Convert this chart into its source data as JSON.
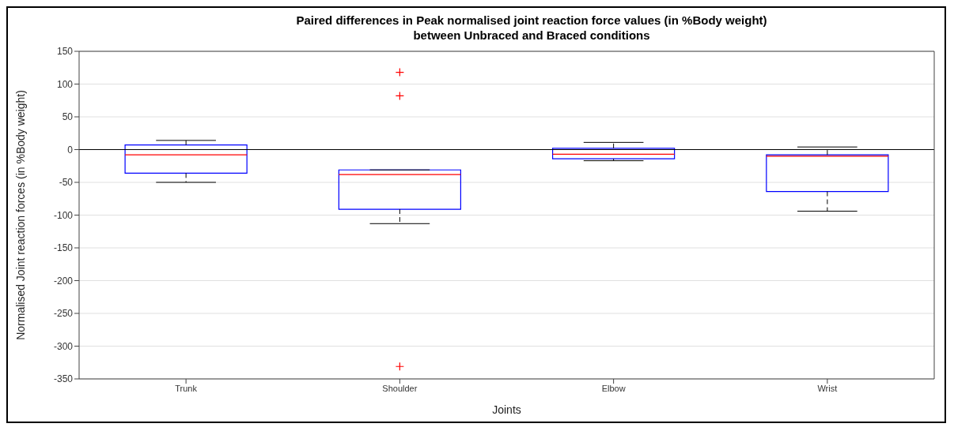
{
  "chart_data": {
    "type": "box",
    "title": "Paired differences in Peak normalised joint reaction force values (in %Body weight)\nbetween Unbraced and Braced conditions",
    "xlabel": "Joints",
    "ylabel": "Normalised Joint reaction forces (in %Body weight)",
    "categories": [
      "Trunk",
      "Shoulder",
      "Elbow",
      "Wrist"
    ],
    "color": "#0000ff",
    "boxes": [
      {
        "low": -50,
        "q1": -36,
        "median": -8,
        "q3": 7,
        "high": 14
      },
      {
        "low": -113,
        "q1": -91,
        "median": -38,
        "q3": -31,
        "high": -31,
        "outliers": [
          118,
          82,
          -331
        ]
      },
      {
        "low": -17,
        "q1": -14,
        "median": -7,
        "q3": 2,
        "high": 11
      },
      {
        "low": -94,
        "q1": -64,
        "median": -10,
        "q3": -8,
        "high": 4
      }
    ],
    "ylim": [
      -350,
      150
    ],
    "yticks": [
      -350,
      -300,
      -250,
      -200,
      -150,
      -100,
      -50,
      0,
      50,
      100,
      150
    ],
    "ref_lines": [
      {
        "axis": "y",
        "value": 0,
        "color": "#000000"
      }
    ],
    "grid": "y"
  }
}
